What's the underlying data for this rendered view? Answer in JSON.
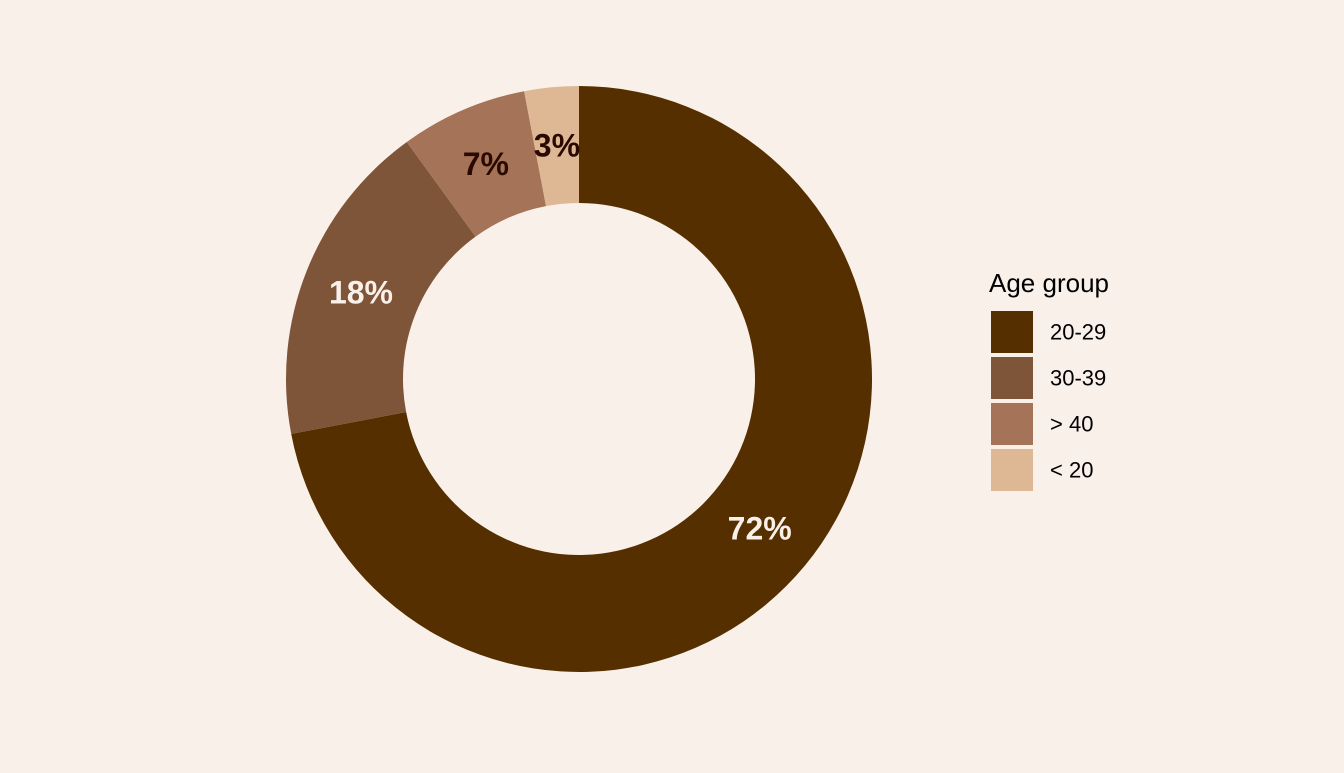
{
  "chart_data": {
    "type": "pie",
    "donut": true,
    "title": "",
    "slices": [
      {
        "label": "20-29",
        "value": 72,
        "display": "72%",
        "color": "#562F00",
        "label_color": "#FAF0EA"
      },
      {
        "label": "30-39",
        "value": 18,
        "display": "18%",
        "color": "#7F553A",
        "label_color": "#FAF0EA"
      },
      {
        "label": "> 40",
        "value": 7,
        "display": "7%",
        "color": "#A57357",
        "label_color": "#2A0A00"
      },
      {
        "label": "< 20",
        "value": 3,
        "display": "3%",
        "color": "#DEB794",
        "label_color": "#2A0A00"
      }
    ],
    "legend": {
      "title": "Age group",
      "position": "right"
    },
    "background_color": "#FAF0EA"
  }
}
